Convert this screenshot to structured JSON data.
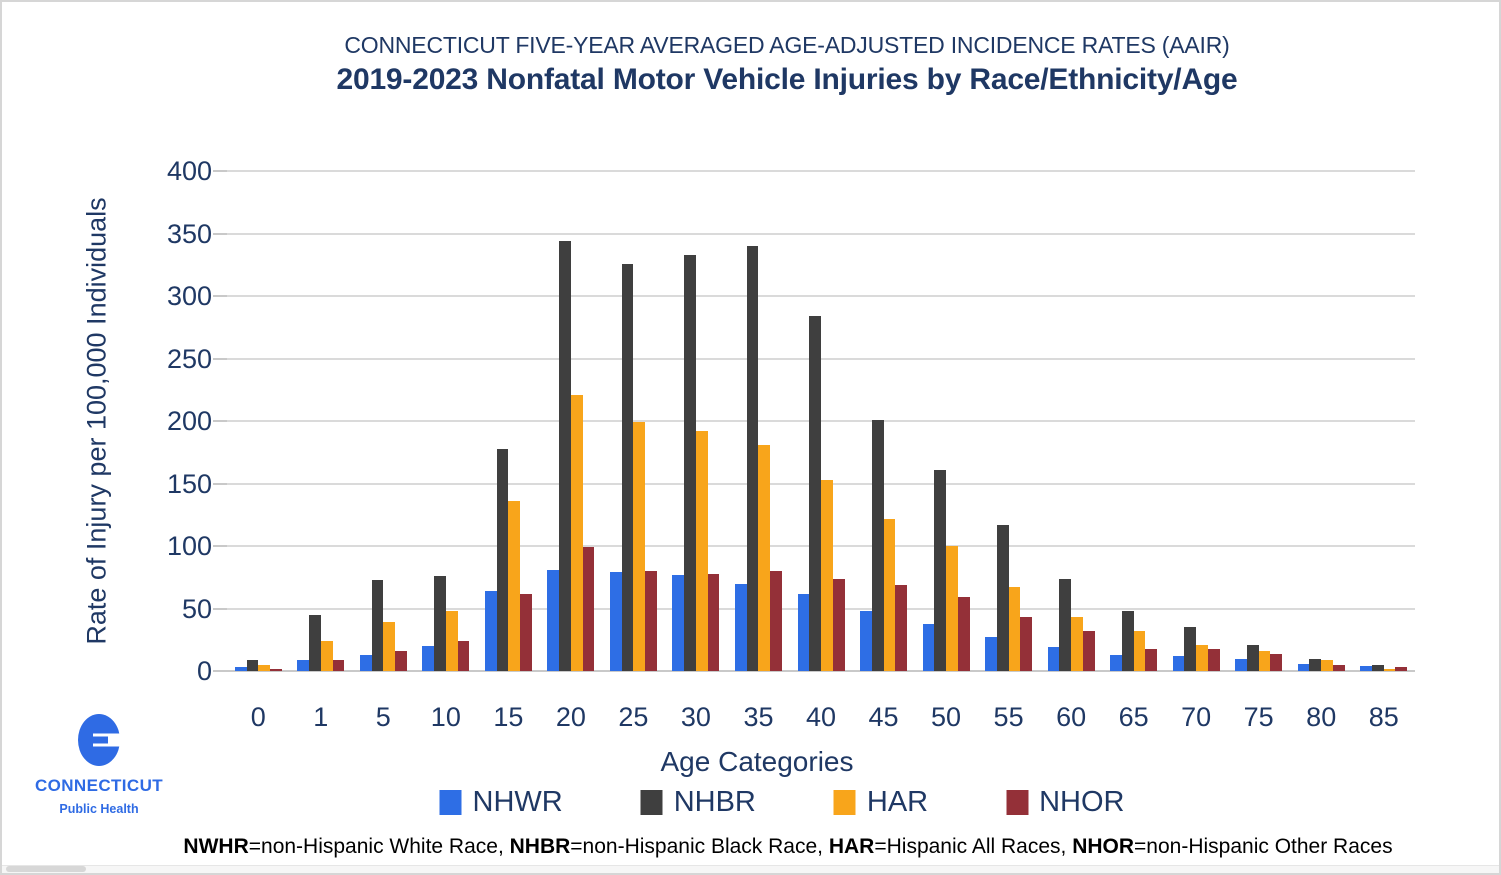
{
  "header": {
    "subtitle": "CONNECTICUT FIVE-YEAR AVERAGED AGE-ADJUSTED INCIDENCE RATES (AAIR)",
    "title": "2019-2023 Nonfatal Motor Vehicle Injuries by Race/Ethnicity/Age"
  },
  "chart_data": {
    "type": "bar",
    "title": "2019-2023 Nonfatal Motor Vehicle Injuries by Race/Ethnicity/Age",
    "subtitle": "CONNECTICUT FIVE-YEAR AVERAGED AGE-ADJUSTED INCIDENCE RATES (AAIR)",
    "xlabel": "Age Categories",
    "ylabel": "Rate of Injury per 100,000 Individuals",
    "ylim": [
      0,
      400
    ],
    "ytick_step": 50,
    "grid": true,
    "legend_position": "bottom",
    "categories": [
      "0",
      "1",
      "5",
      "10",
      "15",
      "20",
      "25",
      "30",
      "35",
      "40",
      "45",
      "50",
      "55",
      "60",
      "65",
      "70",
      "75",
      "80",
      "85"
    ],
    "series": [
      {
        "name": "NHWR",
        "color": "#2e6ee5",
        "values": [
          3,
          9,
          13,
          20,
          64,
          81,
          79,
          77,
          70,
          62,
          48,
          38,
          27,
          19,
          13,
          12,
          10,
          6,
          4
        ]
      },
      {
        "name": "NHBR",
        "color": "#3f3f3f",
        "values": [
          9,
          45,
          73,
          76,
          178,
          344,
          326,
          333,
          340,
          284,
          201,
          161,
          117,
          74,
          48,
          35,
          21,
          10,
          5
        ]
      },
      {
        "name": "HAR",
        "color": "#f8a51b",
        "values": [
          5,
          24,
          39,
          48,
          136,
          221,
          199,
          192,
          181,
          153,
          122,
          100,
          67,
          43,
          32,
          21,
          16,
          9,
          2
        ]
      },
      {
        "name": "NHOR",
        "color": "#943038",
        "values": [
          2,
          9,
          16,
          24,
          62,
          99,
          80,
          78,
          80,
          74,
          69,
          59,
          43,
          32,
          18,
          18,
          14,
          5,
          3
        ]
      }
    ]
  },
  "footnote": {
    "segments": [
      {
        "text": "NWHR",
        "bold": true
      },
      {
        "text": "=non-Hispanic White Race, ",
        "bold": false
      },
      {
        "text": "NHBR",
        "bold": true
      },
      {
        "text": "=non-Hispanic Black Race, ",
        "bold": false
      },
      {
        "text": "HAR",
        "bold": true
      },
      {
        "text": "=Hispanic All Races, ",
        "bold": false
      },
      {
        "text": "NHOR",
        "bold": true
      },
      {
        "text": "=non-Hispanic Other Races",
        "bold": false
      }
    ]
  },
  "logo": {
    "line1": "CONNECTICUT",
    "line2": "Public Health",
    "color": "#2f6be4"
  }
}
